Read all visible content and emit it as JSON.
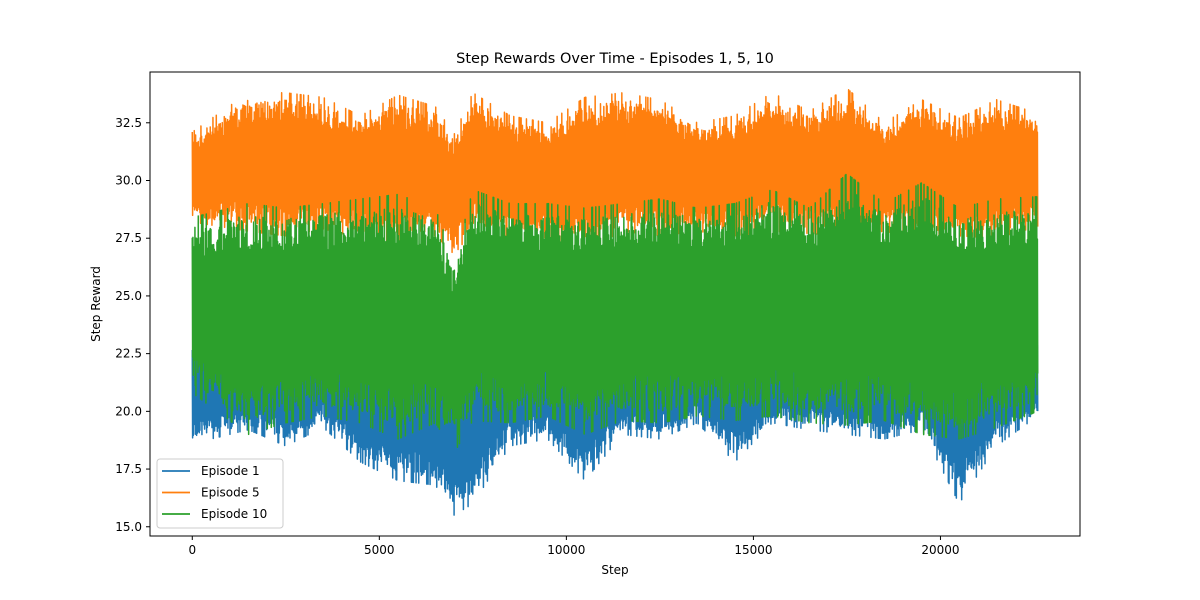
{
  "chart_data": {
    "type": "line",
    "title": "Step Rewards Over Time - Episodes 1, 5, 10",
    "xlabel": "Step",
    "ylabel": "Step Reward",
    "xlim": [
      -1130,
      23730
    ],
    "ylim": [
      14.6,
      34.7
    ],
    "x_ticks": [
      0,
      5000,
      10000,
      15000,
      20000
    ],
    "x_tick_labels": [
      "0",
      "5000",
      "10000",
      "15000",
      "20000"
    ],
    "y_ticks": [
      15.0,
      17.5,
      20.0,
      22.5,
      25.0,
      27.5,
      30.0,
      32.5
    ],
    "y_tick_labels": [
      "15.0",
      "17.5",
      "20.0",
      "22.5",
      "25.0",
      "27.5",
      "30.0",
      "32.5"
    ],
    "grid": false,
    "legend_position": "lower-left",
    "steps": 22600,
    "series": [
      {
        "name": "Episode 1",
        "color": "#1f77b4",
        "band": {
          "x": [
            0,
            1500,
            2500,
            3500,
            4500,
            5500,
            6500,
            7000,
            7500,
            8500,
            9500,
            10500,
            11500,
            12500,
            13500,
            14500,
            15500,
            16500,
            17500,
            18500,
            19500,
            20500,
            21500,
            22600
          ],
          "low": [
            18.6,
            19.2,
            18.5,
            19.3,
            17.8,
            17.0,
            16.8,
            15.5,
            16.0,
            18.5,
            18.8,
            17.0,
            19.0,
            18.8,
            19.5,
            17.8,
            19.5,
            19.2,
            19.0,
            18.8,
            19.2,
            16.0,
            18.5,
            19.8
          ],
          "high": [
            23.5,
            23.8,
            23.6,
            24.0,
            23.4,
            23.9,
            23.2,
            22.5,
            23.5,
            23.8,
            23.6,
            23.5,
            23.9,
            23.7,
            23.8,
            23.4,
            23.6,
            23.9,
            23.8,
            23.5,
            23.8,
            23.6,
            23.9,
            23.5
          ]
        }
      },
      {
        "name": "Episode 5",
        "color": "#ff7f0e",
        "band": {
          "x": [
            0,
            1500,
            2500,
            3500,
            4500,
            5500,
            6500,
            7000,
            7500,
            8500,
            9500,
            10500,
            11500,
            12500,
            13500,
            14500,
            15500,
            16500,
            17500,
            18500,
            19500,
            20500,
            21500,
            22600
          ],
          "low": [
            28.2,
            27.8,
            27.6,
            27.9,
            27.5,
            27.0,
            27.6,
            26.8,
            27.8,
            27.6,
            27.5,
            27.0,
            27.8,
            27.6,
            27.8,
            27.6,
            27.8,
            27.7,
            27.6,
            27.8,
            27.5,
            27.6,
            27.5,
            28.0
          ],
          "high": [
            32.1,
            33.8,
            33.8,
            33.6,
            32.8,
            33.7,
            33.2,
            32.0,
            33.8,
            32.8,
            32.5,
            33.6,
            33.8,
            33.5,
            32.5,
            32.8,
            33.8,
            33.0,
            34.0,
            32.5,
            33.5,
            32.7,
            33.5,
            32.9
          ]
        }
      },
      {
        "name": "Episode 10",
        "color": "#2ca02c",
        "band": {
          "x": [
            0,
            1500,
            2500,
            3500,
            4500,
            5500,
            6500,
            7000,
            7500,
            8500,
            9500,
            10500,
            11500,
            12500,
            13500,
            14500,
            15500,
            16500,
            17500,
            18500,
            19500,
            20500,
            21500,
            22600
          ],
          "low": [
            20.8,
            19.0,
            19.5,
            19.8,
            19.5,
            18.8,
            19.5,
            18.2,
            19.6,
            19.5,
            19.8,
            19.0,
            19.6,
            19.5,
            19.8,
            19.6,
            19.8,
            19.5,
            19.4,
            19.6,
            19.0,
            18.8,
            19.3,
            20.0
          ],
          "high": [
            28.4,
            29.0,
            28.8,
            29.0,
            29.2,
            29.4,
            28.8,
            26.5,
            29.6,
            29.0,
            29.0,
            28.8,
            29.0,
            29.2,
            28.8,
            29.0,
            29.6,
            28.8,
            30.3,
            29.0,
            29.9,
            28.8,
            29.2,
            29.3
          ]
        }
      }
    ]
  }
}
